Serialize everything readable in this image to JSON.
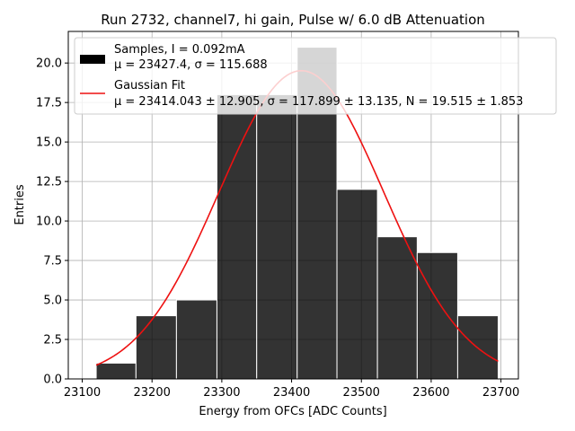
{
  "chart_data": {
    "type": "bar",
    "title": "Run 2732, channel7, hi gain, Pulse w/ 6.0 dB Attenuation",
    "xlabel": "Energy from OFCs [ADC Counts]",
    "ylabel": "Entries",
    "xlim": [
      23080,
      23725
    ],
    "ylim": [
      0,
      22
    ],
    "xticks": [
      23100,
      23200,
      23300,
      23400,
      23500,
      23600,
      23700
    ],
    "xtick_labels": [
      "23100",
      "23200",
      "23300",
      "23400",
      "23500",
      "23600",
      "23700"
    ],
    "yticks": [
      0,
      2.5,
      5,
      7.5,
      10,
      12.5,
      15,
      17.5,
      20
    ],
    "ytick_labels": [
      "0.0",
      "2.5",
      "5.0",
      "7.5",
      "10.0",
      "12.5",
      "15.0",
      "17.5",
      "20.0"
    ],
    "grid": true,
    "legend_placement": "top",
    "bins": [
      {
        "x0": 23120,
        "x1": 23177,
        "count": 1
      },
      {
        "x0": 23177,
        "x1": 23235,
        "count": 4
      },
      {
        "x0": 23235,
        "x1": 23293,
        "count": 5
      },
      {
        "x0": 23293,
        "x1": 23350,
        "count": 18
      },
      {
        "x0": 23350,
        "x1": 23408,
        "count": 18
      },
      {
        "x0": 23408,
        "x1": 23465,
        "count": 21
      },
      {
        "x0": 23465,
        "x1": 23523,
        "count": 12
      },
      {
        "x0": 23523,
        "x1": 23580,
        "count": 9
      },
      {
        "x0": 23580,
        "x1": 23638,
        "count": 8
      },
      {
        "x0": 23638,
        "x1": 23696,
        "count": 4
      }
    ],
    "fit": {
      "mu": 23414.043,
      "sigma": 117.899,
      "N": 19.515,
      "x_range": [
        23120,
        23696
      ]
    },
    "series": [
      {
        "name": "Samples, I = 0.092mA",
        "stats_line": "μ = 23427.4, σ = 115.688",
        "color": "#000000"
      },
      {
        "name": "Gaussian Fit",
        "stats_line": "μ = 23414.043 ± 12.905, σ = 117.899 ± 13.135, N = 19.515 ± 1.853",
        "color": "#ee1111"
      }
    ]
  }
}
